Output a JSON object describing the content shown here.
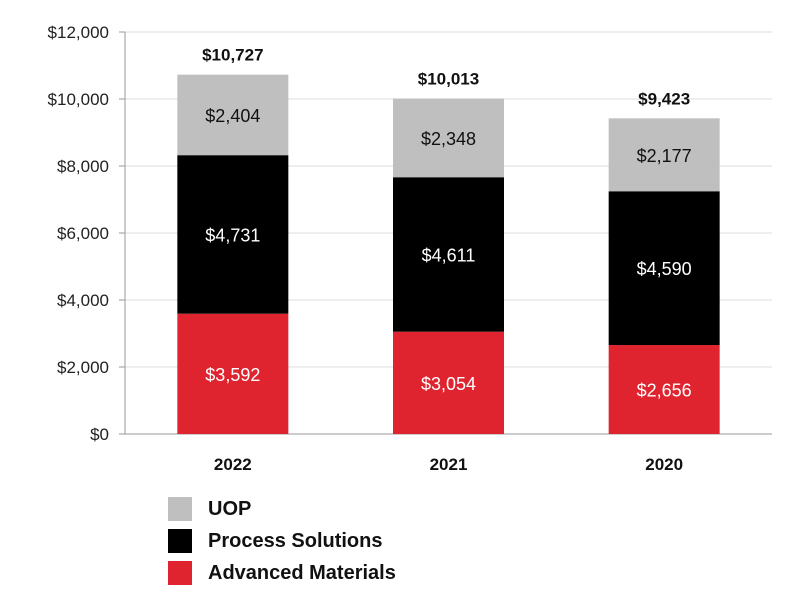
{
  "chart_data": {
    "type": "bar",
    "stacked": true,
    "categories": [
      "2022",
      "2021",
      "2020"
    ],
    "series": [
      {
        "name": "Advanced Materials",
        "values": [
          3592,
          3054,
          2656
        ],
        "labels": [
          "$3,592",
          "$3,054",
          "$2,656"
        ],
        "color": "#e0242f",
        "label_color": "#ffffff"
      },
      {
        "name": "Process Solutions",
        "values": [
          4731,
          4611,
          4590
        ],
        "labels": [
          "$4,731",
          "$4,611",
          "$4,590"
        ],
        "color": "#000000",
        "label_color": "#ffffff"
      },
      {
        "name": "UOP",
        "values": [
          2404,
          2348,
          2177
        ],
        "labels": [
          "$2,404",
          "$2,348",
          "$2,177"
        ],
        "color": "#bfbfbf",
        "label_color": "#111111"
      }
    ],
    "totals": [
      10727,
      10013,
      9423
    ],
    "total_labels": [
      "$10,727",
      "$10,013",
      "$9,423"
    ],
    "ylim": [
      0,
      12000
    ],
    "y_ticks": [
      0,
      2000,
      4000,
      6000,
      8000,
      10000,
      12000
    ],
    "y_tick_labels": [
      "$0",
      "$2,000",
      "$4,000",
      "$6,000",
      "$8,000",
      "$10,000",
      "$12,000"
    ],
    "grid": true,
    "legend_position": "bottom-left",
    "title": "",
    "xlabel": "",
    "ylabel": ""
  },
  "legend": {
    "items": [
      {
        "label": "UOP",
        "color": "#bfbfbf"
      },
      {
        "label": "Process Solutions",
        "color": "#000000"
      },
      {
        "label": "Advanced Materials",
        "color": "#e0242f"
      }
    ]
  },
  "colors": {
    "grid": "#dddddd",
    "axis": "#999999"
  }
}
